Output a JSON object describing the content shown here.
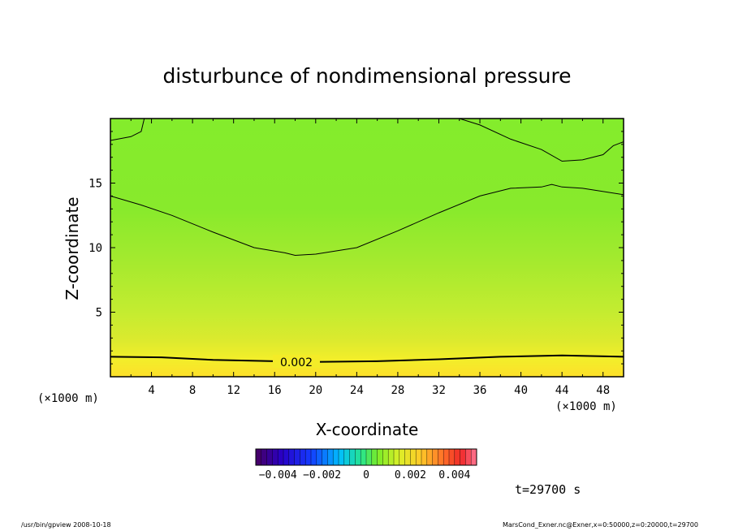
{
  "chart_data": {
    "type": "heatmap",
    "title": "disturbunce of nondimensional pressure",
    "xlabel": "X-coordinate",
    "ylabel": "Z-coordinate",
    "x_unit_left": "(×1000 m)",
    "x_unit_right": "(×1000 m)",
    "xlim": [
      0,
      50
    ],
    "ylim": [
      0,
      20
    ],
    "x_ticks": [
      "4",
      "8",
      "12",
      "16",
      "20",
      "24",
      "28",
      "32",
      "36",
      "40",
      "44",
      "48"
    ],
    "y_ticks": [
      "5",
      "10",
      "15"
    ],
    "contour_label": "0.002",
    "contours": [
      {
        "level": 0.002,
        "points": [
          [
            0,
            1.55
          ],
          [
            5,
            1.5
          ],
          [
            10,
            1.3
          ],
          [
            16,
            1.2
          ],
          [
            20,
            1.15
          ],
          [
            26,
            1.2
          ],
          [
            32,
            1.35
          ],
          [
            38,
            1.55
          ],
          [
            44,
            1.65
          ],
          [
            50,
            1.55
          ]
        ]
      },
      {
        "level": 0.0005,
        "points": [
          [
            0,
            14.0
          ],
          [
            3,
            13.3
          ],
          [
            6,
            12.5
          ],
          [
            10,
            11.2
          ],
          [
            14,
            10.0
          ],
          [
            17,
            9.6
          ],
          [
            18,
            9.4
          ],
          [
            20,
            9.5
          ],
          [
            24,
            10.0
          ],
          [
            28,
            11.3
          ],
          [
            32,
            12.7
          ],
          [
            36,
            14.0
          ],
          [
            39,
            14.6
          ],
          [
            42,
            14.7
          ],
          [
            43,
            14.9
          ],
          [
            44,
            14.7
          ],
          [
            46,
            14.6
          ],
          [
            50,
            14.1
          ]
        ]
      },
      {
        "level": 0.0005,
        "points": [
          [
            0,
            18.3
          ],
          [
            2,
            18.6
          ],
          [
            3,
            19.0
          ],
          [
            3.3,
            20
          ]
        ]
      },
      {
        "level": 0.0005,
        "points": [
          [
            34,
            20
          ],
          [
            36,
            19.5
          ],
          [
            39,
            18.4
          ],
          [
            42,
            17.6
          ],
          [
            44,
            16.7
          ],
          [
            46,
            16.8
          ],
          [
            48,
            17.2
          ],
          [
            49,
            17.9
          ],
          [
            50,
            18.2
          ]
        ]
      }
    ],
    "colorbar_ticks": [
      "−0.004",
      "−0.002",
      "0",
      "0.002",
      "0.004"
    ],
    "colorbar_range": [
      -0.005,
      0.005
    ]
  },
  "time_label": "t=29700 s",
  "footer_left": "/usr/bin/gpview   2008-10-18",
  "footer_right": "MarsCond_Exner.nc@Exner,x=0:50000,z=0:20000,t=29700"
}
